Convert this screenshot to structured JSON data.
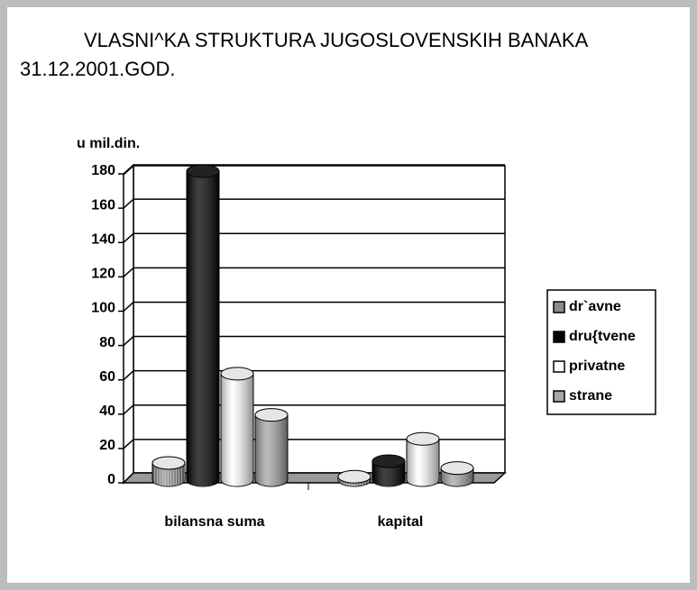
{
  "chart_data": {
    "type": "bar3d",
    "title": [
      "VLASNI^KA STRUKTURA JUGOSLOVENSKIH BANAKA",
      "31.12.2001.GOD."
    ],
    "y_label": "u mil.din.",
    "categories": [
      "bilansna  suma",
      "kapital"
    ],
    "series": [
      {
        "name": "dr`avne",
        "color": "#8c8c8c",
        "values": [
          10,
          2
        ]
      },
      {
        "name": "dru{tvene",
        "color": "#000000",
        "values": [
          180,
          11
        ]
      },
      {
        "name": "privatne",
        "color": "#ffffff",
        "values": [
          62,
          24
        ]
      },
      {
        "name": "strane",
        "color": "#a6a6a6",
        "values": [
          38,
          7
        ]
      }
    ],
    "ylim": [
      0,
      180
    ],
    "yticks": [
      0,
      20,
      40,
      60,
      80,
      100,
      120,
      140,
      160,
      180
    ],
    "grid": true,
    "legend": "right"
  }
}
